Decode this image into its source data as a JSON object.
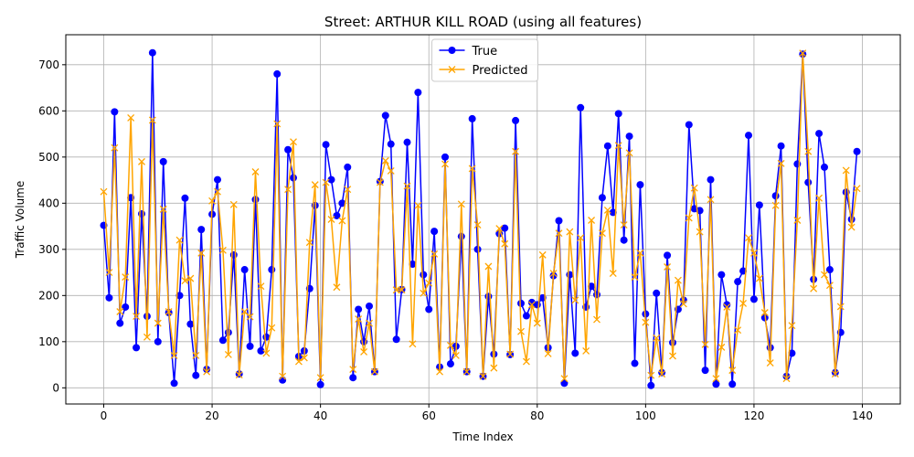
{
  "chart_data": {
    "type": "line",
    "title": "Street: ARTHUR KILL ROAD (using all features)",
    "xlabel": "Time Index",
    "ylabel": "Traffic Volume",
    "xlim": [
      -7,
      147
    ],
    "ylim": [
      -35,
      765
    ],
    "xticks": [
      0,
      20,
      40,
      60,
      80,
      100,
      120,
      140
    ],
    "yticks": [
      0,
      100,
      200,
      300,
      400,
      500,
      600,
      700
    ],
    "grid": true,
    "legend_position": "top-center",
    "series": [
      {
        "name": "True",
        "color": "#0000ff",
        "marker": "circle",
        "values": [
          352,
          195,
          598,
          140,
          175,
          412,
          87,
          377,
          155,
          726,
          100,
          490,
          163,
          10,
          200,
          411,
          138,
          27,
          343,
          40,
          376,
          451,
          103,
          120,
          288,
          30,
          256,
          90,
          408,
          80,
          110,
          256,
          680,
          17,
          516,
          455,
          68,
          80,
          215,
          395,
          7,
          527,
          451,
          373,
          400,
          478,
          22,
          170,
          100,
          177,
          35,
          447,
          590,
          528,
          105,
          213,
          532,
          268,
          640,
          245,
          170,
          339,
          45,
          500,
          52,
          90,
          328,
          35,
          583,
          300,
          25,
          198,
          73,
          334,
          346,
          72,
          579,
          183,
          156,
          185,
          180,
          195,
          87,
          243,
          362,
          10,
          245,
          75,
          607,
          175,
          220,
          202,
          412,
          524,
          380,
          594,
          320,
          545,
          53,
          440,
          160,
          5,
          205,
          33,
          287,
          98,
          170,
          190,
          570,
          388,
          384,
          38,
          451,
          8,
          245,
          180,
          8,
          230,
          253,
          547,
          192,
          396,
          152,
          87,
          416,
          524,
          25,
          75,
          485,
          723,
          445,
          235,
          551,
          478,
          256,
          33,
          120,
          424,
          365,
          512
        ]
      },
      {
        "name": "Predicted",
        "color": "#ffa500",
        "marker": "x",
        "values": [
          425,
          250,
          520,
          165,
          240,
          585,
          155,
          490,
          110,
          580,
          140,
          387,
          165,
          70,
          320,
          232,
          237,
          70,
          292,
          35,
          405,
          425,
          298,
          72,
          397,
          28,
          165,
          154,
          468,
          220,
          75,
          130,
          572,
          25,
          430,
          533,
          57,
          65,
          315,
          440,
          22,
          445,
          365,
          218,
          362,
          430,
          40,
          149,
          78,
          140,
          35,
          445,
          492,
          470,
          212,
          212,
          437,
          95,
          395,
          205,
          227,
          290,
          35,
          485,
          92,
          70,
          398,
          35,
          475,
          353,
          25,
          263,
          43,
          345,
          312,
          73,
          512,
          122,
          57,
          180,
          140,
          288,
          74,
          248,
          335,
          20,
          338,
          190,
          325,
          80,
          363,
          148,
          335,
          385,
          248,
          525,
          353,
          509,
          240,
          292,
          142,
          27,
          108,
          30,
          262,
          69,
          233,
          182,
          368,
          433,
          338,
          94,
          408,
          20,
          88,
          175,
          38,
          125,
          183,
          325,
          292,
          237,
          163,
          54,
          395,
          486,
          20,
          135,
          363,
          725,
          512,
          215,
          411,
          245,
          222,
          30,
          176,
          471,
          348,
          432
        ]
      }
    ]
  }
}
